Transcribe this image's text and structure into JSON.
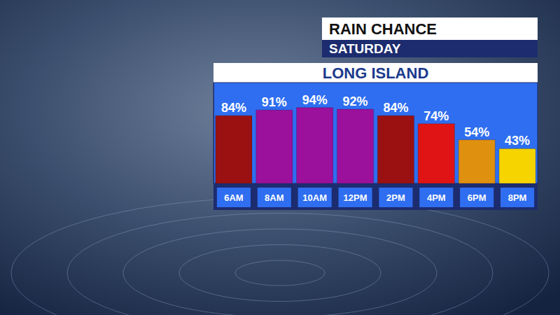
{
  "chart_data": {
    "type": "bar",
    "title": "RAIN CHANCE",
    "subtitle": "SATURDAY",
    "annotations": [
      "LONG ISLAND"
    ],
    "categories": [
      "6AM",
      "8AM",
      "10AM",
      "12PM",
      "2PM",
      "4PM",
      "6PM",
      "8PM"
    ],
    "values": [
      84,
      91,
      94,
      92,
      84,
      74,
      54,
      43
    ],
    "value_labels": [
      "84%",
      "91%",
      "94%",
      "92%",
      "84%",
      "74%",
      "54%",
      "43%"
    ],
    "colors": [
      "#9b1111",
      "#9b119b",
      "#9b119b",
      "#9b119b",
      "#9b1111",
      "#e01414",
      "#e0900f",
      "#f5d400"
    ],
    "ylim": [
      0,
      125
    ],
    "data_labels": true,
    "tick_labels": "x",
    "grid": false
  }
}
